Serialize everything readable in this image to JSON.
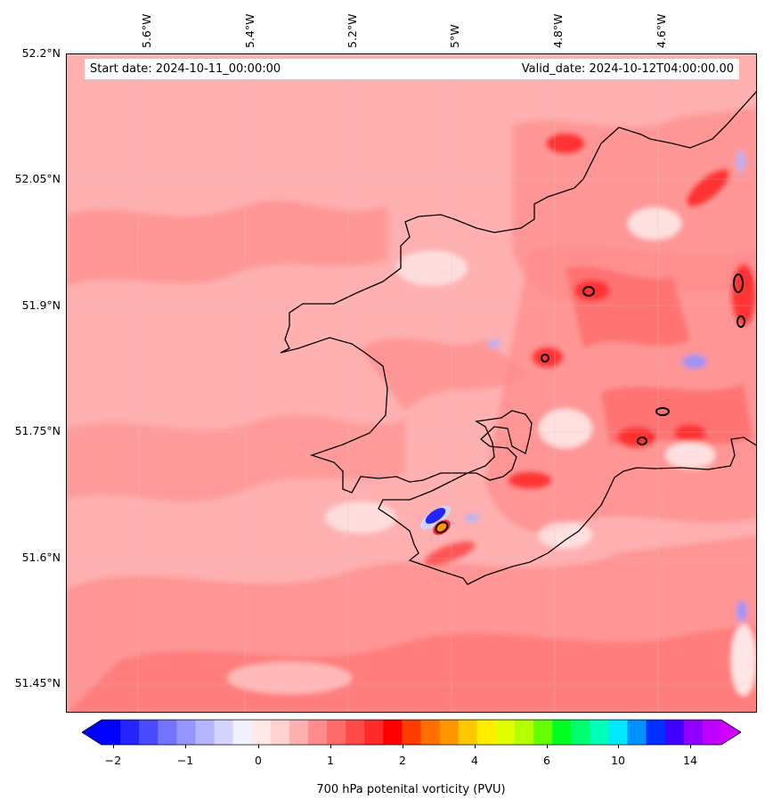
{
  "map": {
    "start_date": "Start date: 2024-10-11_00:00:00",
    "valid_date": "Valid_date: 2024-10-12T04:00:00.00",
    "lon_labels": [
      "5.6°W",
      "5.4°W",
      "5.2°W",
      "5°W",
      "4.8°W",
      "4.6°W"
    ],
    "lat_labels": [
      "52.2°N",
      "52.05°N",
      "51.9°N",
      "51.75°N",
      "51.6°N",
      "51.45°N"
    ],
    "background_color": "#ffb0b0",
    "coastline_color": "#000000"
  },
  "colorbar": {
    "label": "700 hPa potenital vorticity (PVU)",
    "tick_labels": [
      "−2",
      "−1",
      "0",
      "1",
      "2",
      "4",
      "6",
      "10",
      "14"
    ],
    "colors": [
      "#0000ff",
      "#2424ff",
      "#4a4aff",
      "#7373ff",
      "#9595ff",
      "#b4b4ff",
      "#d4d4ff",
      "#f0f0ff",
      "#ffe8e8",
      "#ffd2d2",
      "#ffb0b0",
      "#ff8c8c",
      "#ff6a6a",
      "#ff4a4a",
      "#ff2a2a",
      "#ff0000",
      "#ff3c00",
      "#ff6e00",
      "#ff9600",
      "#ffc800",
      "#ffee00",
      "#e0ff00",
      "#b4ff00",
      "#64ff00",
      "#00ff20",
      "#00ff70",
      "#00ffb8",
      "#00e8ff",
      "#0090ff",
      "#0030ff",
      "#4000ff",
      "#9000ff",
      "#c000ff"
    ],
    "extend_low_color": "#0000ff",
    "extend_high_color": "#d000ff"
  }
}
